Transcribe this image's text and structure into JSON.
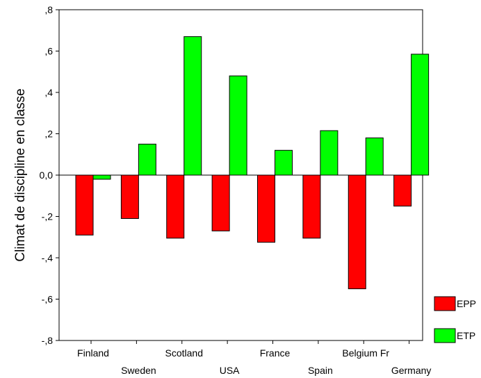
{
  "chart_data": {
    "type": "bar",
    "title": "",
    "xlabel": "",
    "ylabel": "Climat de discipline en classe",
    "categories": [
      "Finland",
      "Sweden",
      "Scotland",
      "USA",
      "France",
      "Spain",
      "Belgium Fr",
      "Germany"
    ],
    "series": [
      {
        "name": "EPP",
        "color": "#ff0000",
        "values": [
          -0.29,
          -0.21,
          -0.305,
          -0.27,
          -0.325,
          -0.305,
          -0.55,
          -0.15
        ]
      },
      {
        "name": "ETP",
        "color": "#00ff00",
        "values": [
          -0.02,
          0.15,
          0.67,
          0.48,
          0.12,
          0.215,
          0.18,
          0.585
        ]
      }
    ],
    "ylim": [
      -0.8,
      0.8
    ],
    "yticks": [
      ",8",
      ",6",
      ",4",
      ",2",
      "0,0",
      "-,2",
      "-,4",
      "-,6",
      "-,8"
    ],
    "legend_position": "bottom-right",
    "grid": false
  }
}
